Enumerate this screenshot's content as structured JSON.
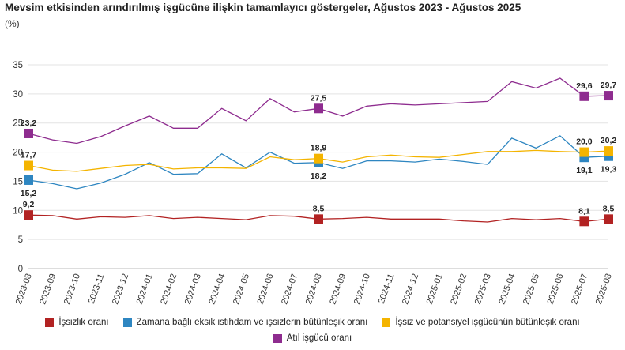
{
  "chart_data": {
    "type": "line",
    "title": "Mevsim etkisinden arındırılmış işgücüne ilişkin tamamlayıcı göstergeler, Ağustos 2023 - Ağustos 2025",
    "ylabel": "(%)",
    "xlabel": "",
    "ylim": [
      0,
      35
    ],
    "yticks": [
      0,
      5,
      10,
      15,
      20,
      25,
      30,
      35
    ],
    "categories": [
      "2023-08",
      "2023-09",
      "2023-10",
      "2023-11",
      "2023-12",
      "2024-01",
      "2024-02",
      "2024-03",
      "2024-04",
      "2024-05",
      "2024-06",
      "2024-07",
      "2024-08",
      "2024-09",
      "2024-10",
      "2024-11",
      "2024-12",
      "2025-01",
      "2025-02",
      "2025-03",
      "2025-04",
      "2025-05",
      "2025-06",
      "2025-07",
      "2025-08"
    ],
    "series": [
      {
        "name": "İşsizlik oranı",
        "color": "#b22222",
        "values": [
          9.2,
          9.1,
          8.5,
          8.9,
          8.8,
          9.1,
          8.6,
          8.8,
          8.6,
          8.4,
          9.1,
          9.0,
          8.5,
          8.6,
          8.8,
          8.5,
          8.5,
          8.5,
          8.2,
          8.0,
          8.6,
          8.4,
          8.6,
          8.1,
          8.5
        ],
        "labels": {
          "0": "9,2",
          "12": "8,5",
          "23": "8,1",
          "24": "8,5"
        },
        "label_pos": "above"
      },
      {
        "name": "Zamana bağlı eksik istihdam ve işsizlerin bütünleşik oranı",
        "color": "#2e86c1",
        "values": [
          15.2,
          14.6,
          13.7,
          14.7,
          16.2,
          18.2,
          16.2,
          16.3,
          19.7,
          17.3,
          20.0,
          18.1,
          18.2,
          17.2,
          18.5,
          18.5,
          18.3,
          18.8,
          18.4,
          17.9,
          22.4,
          20.7,
          22.8,
          19.1,
          19.3
        ],
        "labels": {
          "0": "15,2",
          "12": "18,2",
          "23": "19,1",
          "24": "19,3"
        },
        "label_pos": "below"
      },
      {
        "name": "İşsiz ve potansiyel işgücünün bütünleşik oranı",
        "color": "#f4b400",
        "values": [
          17.7,
          16.9,
          16.7,
          17.2,
          17.7,
          17.9,
          17.1,
          17.3,
          17.3,
          17.2,
          19.2,
          18.7,
          18.9,
          18.3,
          19.2,
          19.5,
          19.2,
          19.1,
          19.6,
          20.1,
          20.1,
          20.3,
          20.1,
          20.0,
          20.2
        ],
        "labels": {
          "0": "17,7",
          "12": "18,9",
          "23": "20,0",
          "24": "20,2"
        },
        "label_pos": "above"
      },
      {
        "name": "Atıl işgücü oranı",
        "color": "#8e2c8f",
        "values": [
          23.2,
          22.1,
          21.5,
          22.7,
          24.5,
          26.2,
          24.1,
          24.1,
          27.5,
          25.4,
          29.2,
          26.9,
          27.5,
          26.2,
          27.9,
          28.3,
          28.1,
          28.3,
          28.5,
          28.7,
          32.1,
          31.0,
          32.7,
          29.6,
          29.7
        ],
        "labels": {
          "0": "23,2",
          "12": "27,5",
          "23": "29,6",
          "24": "29,7"
        },
        "label_pos": "above"
      }
    ],
    "marker_indices": [
      0,
      12,
      23,
      24
    ],
    "legend_position": "bottom"
  },
  "legend": {
    "row1": [
      "İşsizlik oranı",
      "Zamana bağlı eksik istihdam ve işsizlerin bütünleşik oranı",
      "İşsiz ve potansiyel işgücünün bütünleşik oranı"
    ],
    "row2": [
      "Atıl işgücü oranı"
    ]
  },
  "colors": {
    "unemployment": "#b22222",
    "time_related": "#2e86c1",
    "potential": "#f4b400",
    "slack": "#8e2c8f",
    "grid": "#e3e3e3"
  }
}
